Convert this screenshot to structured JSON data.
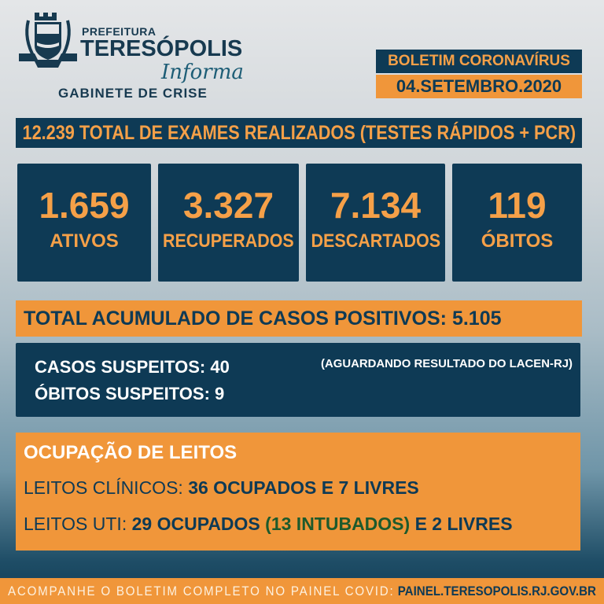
{
  "header": {
    "logo_text": "PREFEITURA TERESÓPOLIS",
    "prefeitura": "PREFEITURA",
    "city": "TERESÓPOLIS",
    "informa": "Informa",
    "gabinete": "GABINETE DE CRISE"
  },
  "bulletin": {
    "title": "BOLETIM CORONAVÍRUS",
    "date": "04.SETEMBRO.2020"
  },
  "exams": {
    "count": "12.239",
    "label": "TOTAL DE EXAMES REALIZADOS (TESTES RÁPIDOS + PCR)"
  },
  "stats": [
    {
      "value": "1.659",
      "label": "ATIVOS"
    },
    {
      "value": "3.327",
      "label": "RECUPERADOS"
    },
    {
      "value": "7.134",
      "label": "DESCARTADOS"
    },
    {
      "value": "119",
      "label": "ÓBITOS"
    }
  ],
  "cumulative": {
    "label": "TOTAL ACUMULADO DE CASOS POSITIVOS:",
    "value": "5.105"
  },
  "suspects": {
    "cases_label": "CASOS SUSPEITOS:",
    "cases_value": "40",
    "deaths_label": "ÓBITOS SUSPEITOS:",
    "deaths_value": "9",
    "note": "(AGUARDANDO RESULTADO DO LACEN-RJ)"
  },
  "beds": {
    "title": "OCUPAÇÃO DE LEITOS",
    "clinical_label": "LEITOS CLÍNICOS:",
    "clinical_value": "36 OCUPADOS E 7 LIVRES",
    "icu_label": "LEITOS UTI:",
    "icu_occupied": "29 OCUPADOS",
    "icu_intubated": "(13 INTUBADOS)",
    "icu_free": "E 2 LIVRES"
  },
  "footer": {
    "text": "ACOMPANHE O BOLETIM COMPLETO NO PAINEL COVID:",
    "url": "PAINEL.TERESOPOLIS.RJ.GOV.BR"
  },
  "colors": {
    "navy": "#0e3a55",
    "orange": "#f0963a",
    "accent_text": "#f5a048",
    "green": "#1d5a2c"
  }
}
